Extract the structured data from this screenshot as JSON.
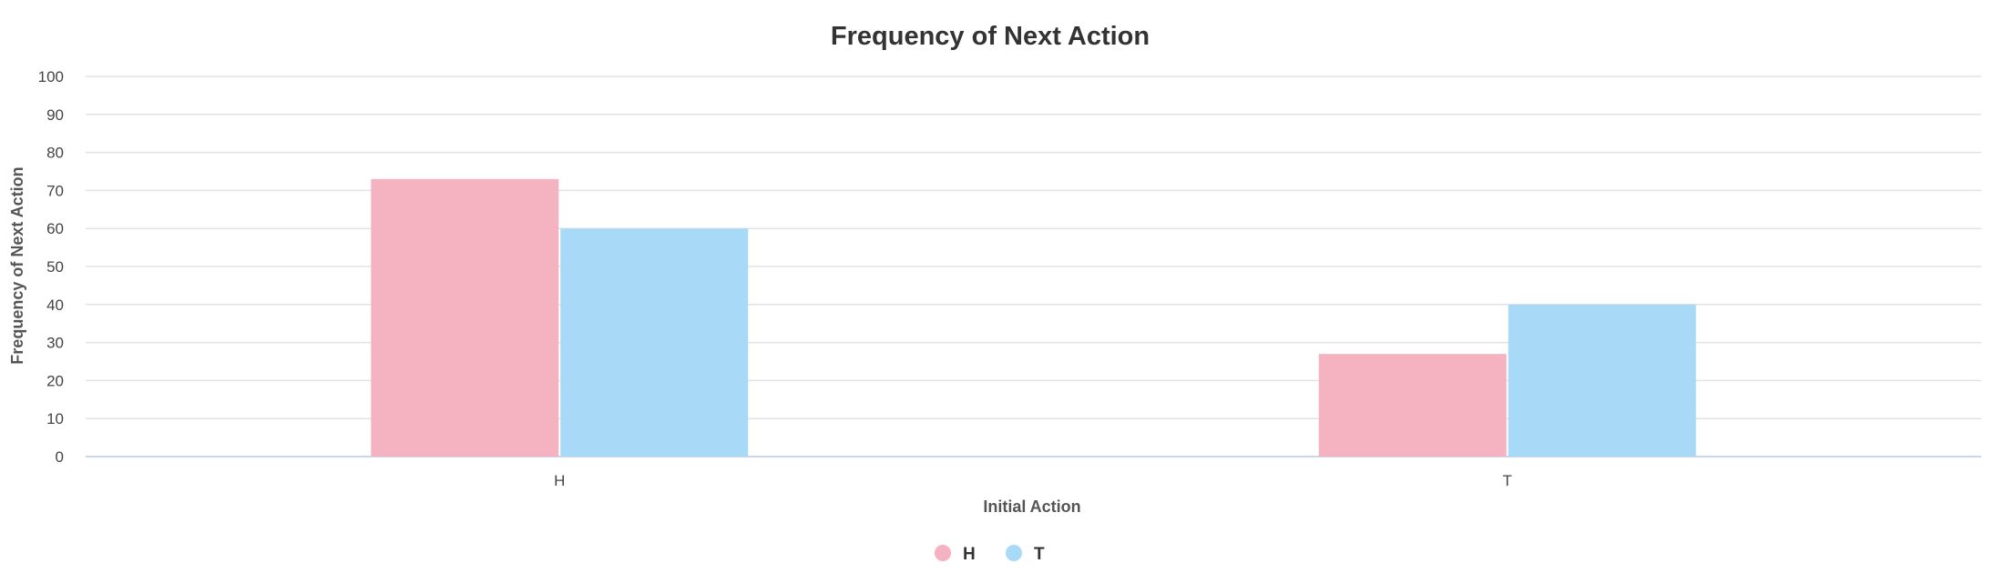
{
  "chart_data": {
    "type": "bar",
    "title": "Frequency of Next Action",
    "xlabel": "Initial Action",
    "ylabel": "Frequency of Next Action",
    "categories": [
      "H",
      "T"
    ],
    "series": [
      {
        "name": "H",
        "values": [
          73,
          27
        ],
        "color": "#f5b3c2"
      },
      {
        "name": "T",
        "values": [
          60,
          40
        ],
        "color": "#a8daf7"
      }
    ],
    "ylim": [
      0,
      100
    ],
    "yticks": [
      0,
      10,
      20,
      30,
      40,
      50,
      60,
      70,
      80,
      90,
      100
    ],
    "grid": true,
    "legend_position": "bottom-center"
  }
}
